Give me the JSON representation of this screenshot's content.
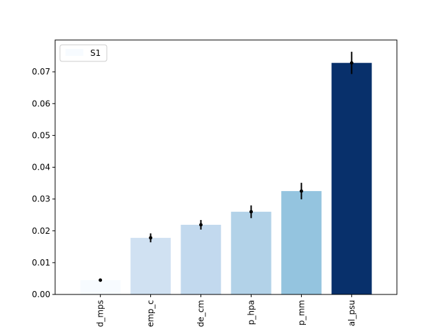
{
  "chart_data": {
    "type": "bar",
    "title": "",
    "xlabel": "",
    "ylabel": "",
    "categories": [
      "d_mps",
      "emp_c",
      "de_cm",
      "p_hpa",
      "p_mm",
      "al_psu"
    ],
    "values": [
      0.0045,
      0.0178,
      0.0219,
      0.026,
      0.0325,
      0.0728
    ],
    "errors": [
      0.0005,
      0.0014,
      0.0015,
      0.002,
      0.0026,
      0.0035
    ],
    "bar_colors": [
      "#f7fbff",
      "#d0e1f2",
      "#c2d9ee",
      "#b2d2e8",
      "#94c4df",
      "#08306b"
    ],
    "series": [
      {
        "name": "S1",
        "values": [
          0.0045,
          0.0178,
          0.0219,
          0.026,
          0.0325,
          0.0728
        ]
      }
    ],
    "ylim": [
      0,
      0.08
    ],
    "yticks": [
      0.0,
      0.01,
      0.02,
      0.03,
      0.04,
      0.05,
      0.06,
      0.07
    ],
    "ytick_labels": [
      "0.00",
      "0.01",
      "0.02",
      "0.03",
      "0.04",
      "0.05",
      "0.06",
      "0.07"
    ],
    "grid": false,
    "legend": {
      "position": "top-left",
      "label": "S1",
      "swatch_color": "#f7fbff"
    },
    "error_color": "#000000",
    "axis_color": "#000000"
  }
}
